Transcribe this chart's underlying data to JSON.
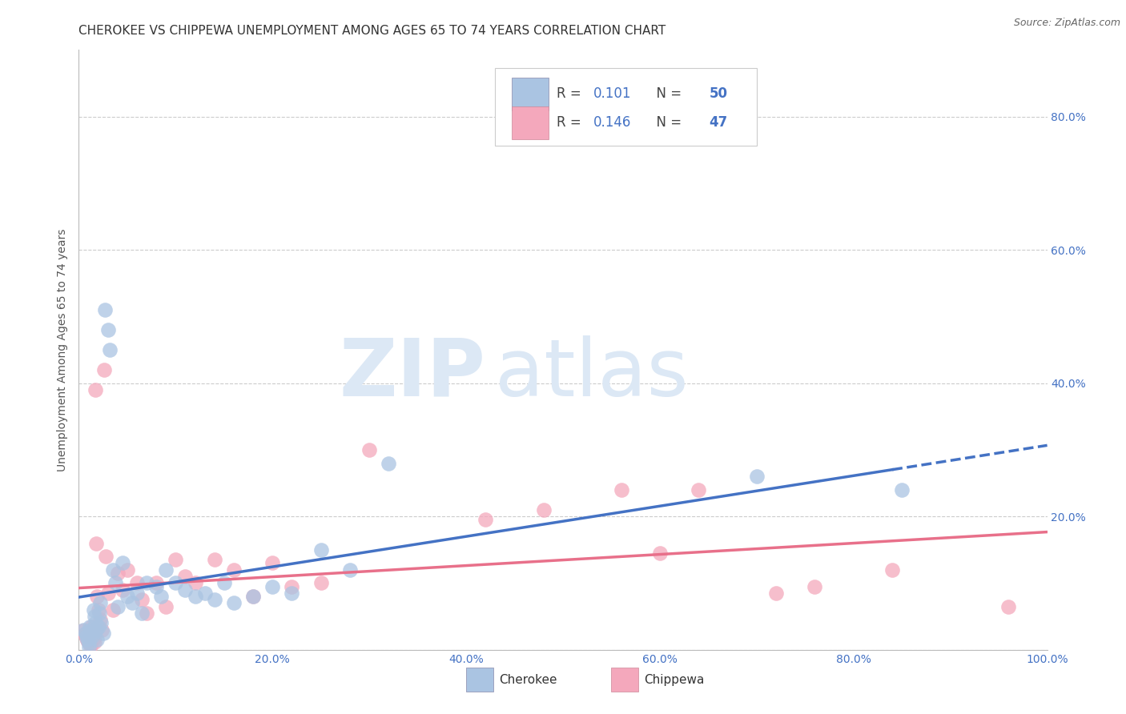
{
  "title": "CHEROKEE VS CHIPPEWA UNEMPLOYMENT AMONG AGES 65 TO 74 YEARS CORRELATION CHART",
  "source": "Source: ZipAtlas.com",
  "ylabel": "Unemployment Among Ages 65 to 74 years",
  "xlim": [
    0.0,
    1.0
  ],
  "ylim": [
    0.0,
    0.9
  ],
  "cherokee_color": "#aac4e2",
  "chippewa_color": "#f4a8bc",
  "cherokee_line_color": "#4472c4",
  "chippewa_line_color": "#e8708a",
  "R_cherokee": 0.101,
  "N_cherokee": 50,
  "R_chippewa": 0.146,
  "N_chippewa": 47,
  "cherokee_x": [
    0.005,
    0.007,
    0.008,
    0.009,
    0.01,
    0.01,
    0.011,
    0.012,
    0.013,
    0.014,
    0.015,
    0.016,
    0.017,
    0.018,
    0.019,
    0.02,
    0.021,
    0.022,
    0.023,
    0.025,
    0.027,
    0.03,
    0.032,
    0.035,
    0.038,
    0.04,
    0.045,
    0.05,
    0.055,
    0.06,
    0.065,
    0.07,
    0.08,
    0.085,
    0.09,
    0.1,
    0.11,
    0.12,
    0.13,
    0.14,
    0.15,
    0.16,
    0.18,
    0.2,
    0.22,
    0.25,
    0.28,
    0.32,
    0.7,
    0.85
  ],
  "cherokee_y": [
    0.03,
    0.025,
    0.02,
    0.015,
    0.01,
    0.005,
    0.035,
    0.03,
    0.025,
    0.02,
    0.06,
    0.05,
    0.04,
    0.03,
    0.015,
    0.035,
    0.055,
    0.07,
    0.04,
    0.025,
    0.51,
    0.48,
    0.45,
    0.12,
    0.1,
    0.065,
    0.13,
    0.08,
    0.07,
    0.085,
    0.055,
    0.1,
    0.095,
    0.08,
    0.12,
    0.1,
    0.09,
    0.08,
    0.085,
    0.075,
    0.1,
    0.07,
    0.08,
    0.095,
    0.085,
    0.15,
    0.12,
    0.28,
    0.26,
    0.24
  ],
  "chippewa_x": [
    0.004,
    0.006,
    0.008,
    0.009,
    0.01,
    0.012,
    0.013,
    0.014,
    0.015,
    0.016,
    0.017,
    0.018,
    0.019,
    0.02,
    0.022,
    0.024,
    0.026,
    0.028,
    0.03,
    0.035,
    0.04,
    0.045,
    0.05,
    0.06,
    0.065,
    0.07,
    0.08,
    0.09,
    0.1,
    0.11,
    0.12,
    0.14,
    0.16,
    0.18,
    0.2,
    0.22,
    0.25,
    0.3,
    0.42,
    0.48,
    0.56,
    0.6,
    0.64,
    0.72,
    0.76,
    0.84,
    0.96
  ],
  "chippewa_y": [
    0.028,
    0.022,
    0.018,
    0.014,
    0.01,
    0.006,
    0.035,
    0.025,
    0.018,
    0.012,
    0.39,
    0.16,
    0.08,
    0.06,
    0.045,
    0.03,
    0.42,
    0.14,
    0.085,
    0.06,
    0.115,
    0.09,
    0.12,
    0.1,
    0.075,
    0.055,
    0.1,
    0.065,
    0.135,
    0.11,
    0.1,
    0.135,
    0.12,
    0.08,
    0.13,
    0.095,
    0.1,
    0.3,
    0.195,
    0.21,
    0.24,
    0.145,
    0.24,
    0.085,
    0.095,
    0.12,
    0.065
  ],
  "background_color": "#ffffff",
  "grid_color": "#cccccc",
  "title_fontsize": 11,
  "label_fontsize": 10,
  "tick_fontsize": 10,
  "blue_text_color": "#4472c4"
}
